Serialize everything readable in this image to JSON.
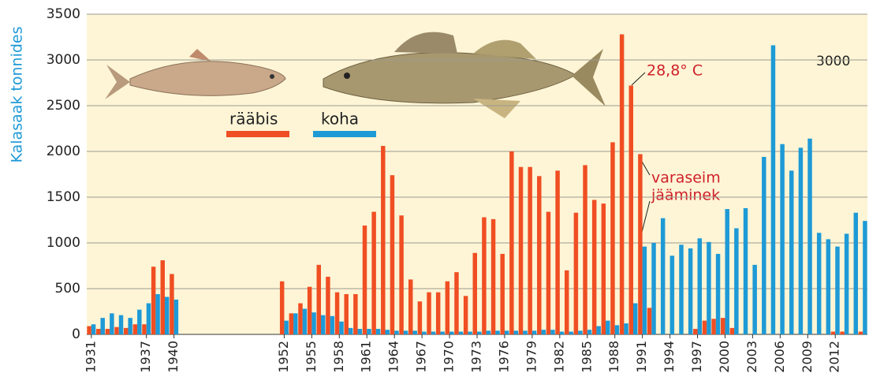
{
  "chart_data": {
    "type": "bar",
    "y_label": "Kalasaak tonnides",
    "annotations": [
      "28,8° C",
      "varaseim",
      "jääminek",
      "3000"
    ],
    "categories": [
      1931,
      null,
      null,
      null,
      null,
      null,
      1937,
      null,
      null,
      1940,
      null,
      null,
      null,
      null,
      null,
      null,
      null,
      null,
      null,
      null,
      null,
      1952,
      null,
      null,
      1955,
      null,
      null,
      1958,
      null,
      null,
      1961,
      null,
      null,
      1964,
      null,
      null,
      1967,
      null,
      null,
      1970,
      null,
      null,
      1973,
      null,
      null,
      1976,
      null,
      null,
      1979,
      null,
      null,
      1982,
      null,
      null,
      1985,
      null,
      null,
      1988,
      null,
      null,
      1991,
      null,
      null,
      1994,
      null,
      null,
      1997,
      null,
      null,
      2000,
      null,
      null,
      2003,
      null,
      null,
      2006,
      null,
      null,
      2009,
      null,
      null,
      2012,
      null,
      null,
      null
    ],
    "series": [
      {
        "name": "rääbis",
        "color": "#f04e23",
        "values": [
          90,
          60,
          60,
          80,
          70,
          110,
          110,
          740,
          810,
          660,
          null,
          null,
          null,
          null,
          null,
          null,
          null,
          null,
          null,
          null,
          null,
          580,
          230,
          340,
          520,
          760,
          630,
          460,
          440,
          440,
          1190,
          1340,
          2060,
          1740,
          1300,
          600,
          360,
          460,
          460,
          580,
          680,
          420,
          890,
          1280,
          1260,
          880,
          2000,
          1830,
          1830,
          1730,
          1340,
          1790,
          700,
          1330,
          1850,
          1470,
          1430,
          2100,
          3280,
          2720,
          1970,
          290,
          null,
          null,
          null,
          null,
          60,
          150,
          170,
          180,
          70,
          null,
          null,
          null,
          null,
          null,
          null,
          null,
          null,
          null,
          null,
          30,
          30,
          null,
          30
        ]
      },
      {
        "name": "koha",
        "color": "#1e9ad6",
        "values": [
          110,
          180,
          230,
          210,
          180,
          270,
          340,
          440,
          410,
          380,
          null,
          null,
          null,
          null,
          null,
          null,
          null,
          null,
          null,
          null,
          null,
          150,
          230,
          280,
          240,
          210,
          200,
          140,
          70,
          60,
          60,
          60,
          50,
          40,
          40,
          40,
          30,
          30,
          30,
          30,
          30,
          30,
          30,
          40,
          40,
          40,
          40,
          40,
          40,
          50,
          50,
          30,
          30,
          40,
          50,
          90,
          150,
          100,
          120,
          340,
          960,
          1000,
          1270,
          860,
          980,
          940,
          1050,
          1010,
          880,
          1370,
          1160,
          1380,
          760,
          1940,
          3160,
          2080,
          1790,
          2040,
          2140,
          1110,
          1040,
          960,
          1100,
          1330,
          1240
        ]
      }
    ],
    "ylim": [
      0,
      3500
    ],
    "yticks": [
      0,
      500,
      1000,
      1500,
      2000,
      2500,
      3000,
      3500
    ],
    "grid": true
  }
}
